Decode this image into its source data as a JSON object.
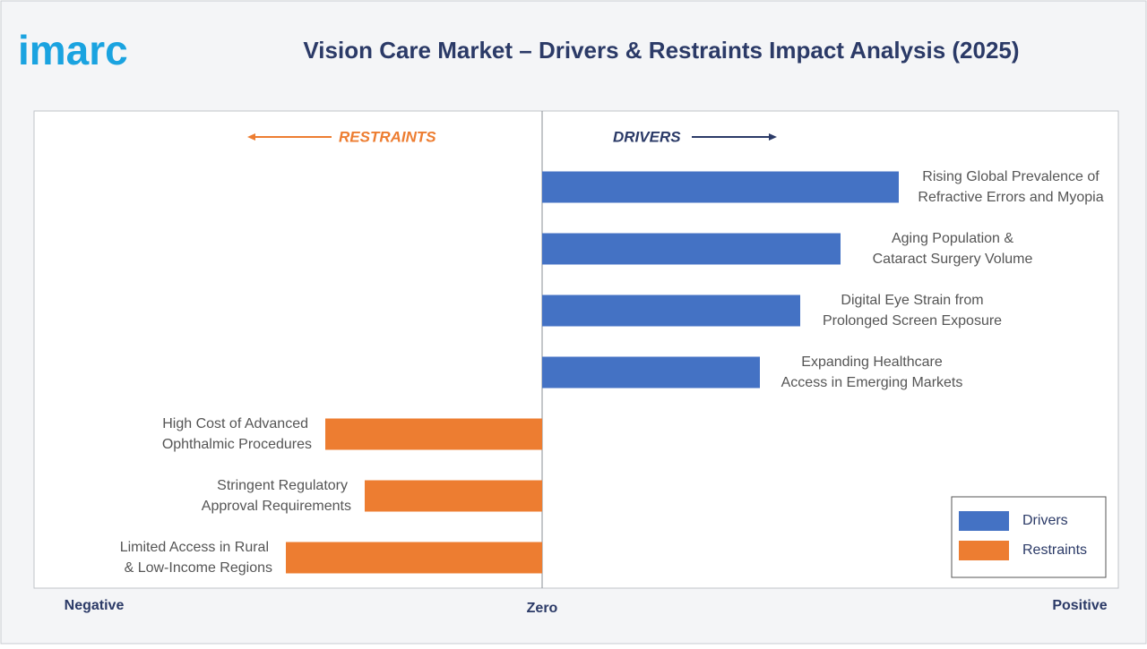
{
  "logo": "imarc",
  "chart_data": {
    "type": "diverging-bar",
    "title": "Vision Care Market – Drivers & Restraints Impact Analysis (2025)",
    "annotations": {
      "restraints": "RESTRAINTS",
      "drivers": "DRIVERS"
    },
    "categories": [
      [
        "Rising Global Prevalence of",
        "Refractive Errors and Myopia"
      ],
      [
        "Aging Population &",
        "Cataract Surgery Volume"
      ],
      [
        "Digital Eye Strain from",
        "Prolonged Screen Exposure"
      ],
      [
        "Expanding Healthcare",
        "Access in Emerging Markets"
      ],
      [
        "High Cost of Advanced",
        "Ophthalmic Procedures"
      ],
      [
        "Stringent Regulatory",
        "Approval Requirements"
      ],
      [
        "Limited Access in Rural",
        "& Low-Income Regions"
      ]
    ],
    "series": [
      {
        "name": "Drivers",
        "color": "#4472c4",
        "values": [
          3.98,
          3.33,
          2.88,
          2.43,
          null,
          null,
          null
        ]
      },
      {
        "name": "Restraints",
        "color": "#ed7d31",
        "values": [
          null,
          null,
          null,
          null,
          -2.42,
          -1.98,
          -2.86
        ]
      }
    ],
    "xlim": [
      -5.67,
      6.43
    ],
    "xticks": [
      {
        "value": -5,
        "label": "Negative"
      },
      {
        "value": 0,
        "label": "Zero"
      },
      {
        "value": 6,
        "label": "Positive"
      }
    ],
    "legend": "bottom-right"
  }
}
